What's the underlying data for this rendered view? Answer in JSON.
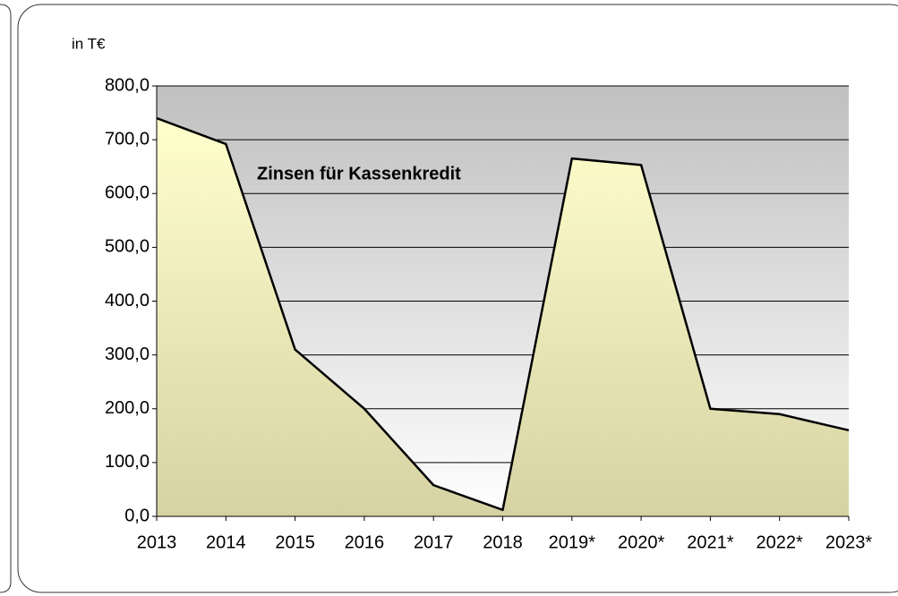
{
  "chart_data": {
    "type": "area",
    "title": "Zinsen für Kassenkredit",
    "y_label": "in T€",
    "categories": [
      "2013",
      "2014",
      "2015",
      "2016",
      "2017",
      "2018",
      "2019*",
      "2020*",
      "2021*",
      "2022*",
      "2023*"
    ],
    "values": [
      740,
      692,
      310,
      200,
      58,
      12,
      665,
      653,
      200,
      190,
      160
    ],
    "color": "#ffffcc",
    "ylim": [
      0,
      800
    ],
    "yticks": [
      {
        "value": 0,
        "label": "0,0"
      },
      {
        "value": 100,
        "label": "100,0"
      },
      {
        "value": 200,
        "label": "200,0"
      },
      {
        "value": 300,
        "label": "300,0"
      },
      {
        "value": 400,
        "label": "400,0"
      },
      {
        "value": 500,
        "label": "500,0"
      },
      {
        "value": 600,
        "label": "600,0"
      },
      {
        "value": 700,
        "label": "700,0"
      },
      {
        "value": 800,
        "label": "800,0"
      }
    ],
    "grid": true
  }
}
